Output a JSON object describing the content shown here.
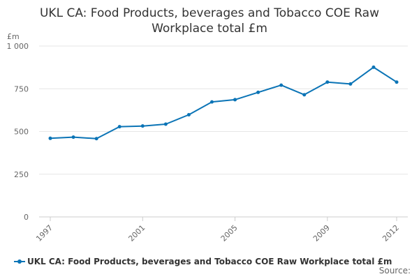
{
  "chart_data": {
    "type": "line",
    "title": [
      "UKL CA: Food Products, beverages and Tobacco COE Raw",
      "Workplace total £m"
    ],
    "ylabel": "£m",
    "ylim": [
      0,
      1000
    ],
    "yticks": [
      0,
      250,
      500,
      750,
      1000
    ],
    "ytick_labels": [
      "0",
      "250",
      "500",
      "750",
      "1 000"
    ],
    "xlim": [
      1997,
      2012
    ],
    "xticks": [
      1997,
      2001,
      2005,
      2009,
      2012
    ],
    "xtick_labels": [
      "1997",
      "2001",
      "2005",
      "2009",
      "2012"
    ],
    "series": [
      {
        "name": "UKL CA: Food Products, beverages and Tobacco COE Raw Workplace total £m",
        "color": "#0b74b6",
        "x": [
          1997,
          1998,
          1999,
          2000,
          2001,
          2002,
          2003,
          2004,
          2005,
          2006,
          2007,
          2008,
          2009,
          2010,
          2011,
          2012
        ],
        "values": [
          460,
          467,
          458,
          528,
          532,
          543,
          598,
          673,
          686,
          729,
          771,
          715,
          789,
          778,
          876,
          789
        ]
      }
    ],
    "grid": true,
    "legend": "bottom-left",
    "source_label": "Source:"
  }
}
